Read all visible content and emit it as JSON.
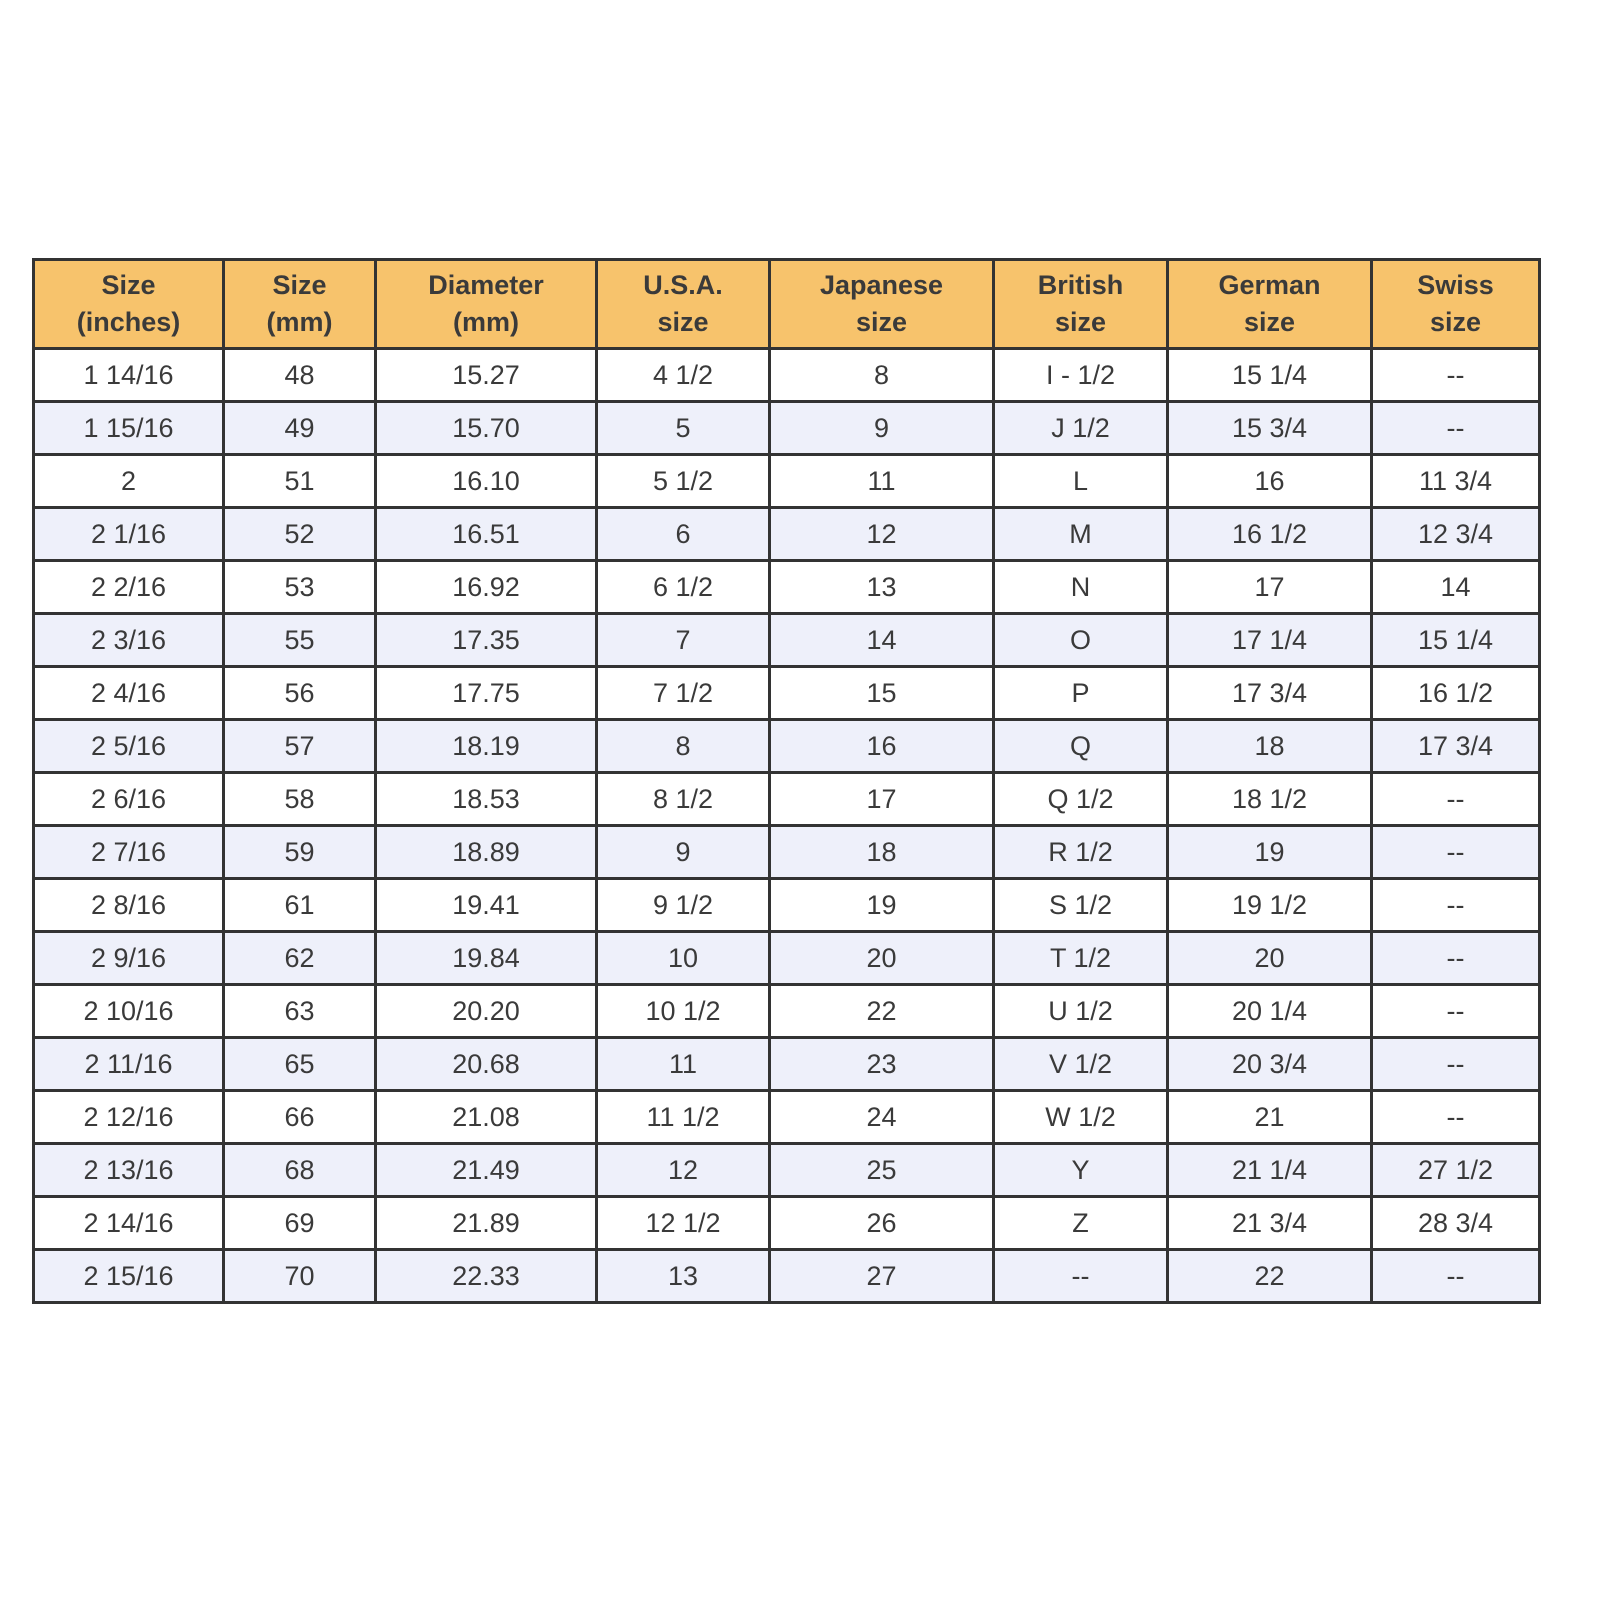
{
  "table": {
    "headers": [
      "Size\n(inches)",
      "Size\n(mm)",
      "Diameter\n(mm)",
      "U.S.A.\nsize",
      "Japanese\nsize",
      "British\nsize",
      "German\nsize",
      "Swiss\nsize"
    ],
    "rows": [
      [
        "1 14/16",
        "48",
        "15.27",
        "4 1/2",
        "8",
        "I - 1/2",
        "15 1/4",
        "--"
      ],
      [
        "1 15/16",
        "49",
        "15.70",
        "5",
        "9",
        "J 1/2",
        "15 3/4",
        "--"
      ],
      [
        "2",
        "51",
        "16.10",
        "5 1/2",
        "11",
        "L",
        "16",
        "11 3/4"
      ],
      [
        "2 1/16",
        "52",
        "16.51",
        "6",
        "12",
        "M",
        "16 1/2",
        "12 3/4"
      ],
      [
        "2 2/16",
        "53",
        "16.92",
        "6 1/2",
        "13",
        "N",
        "17",
        "14"
      ],
      [
        "2 3/16",
        "55",
        "17.35",
        "7",
        "14",
        "O",
        "17 1/4",
        "15 1/4"
      ],
      [
        "2 4/16",
        "56",
        "17.75",
        "7 1/2",
        "15",
        "P",
        "17 3/4",
        "16 1/2"
      ],
      [
        "2 5/16",
        "57",
        "18.19",
        "8",
        "16",
        "Q",
        "18",
        "17 3/4"
      ],
      [
        "2 6/16",
        "58",
        "18.53",
        "8 1/2",
        "17",
        "Q 1/2",
        "18 1/2",
        "--"
      ],
      [
        "2 7/16",
        "59",
        "18.89",
        "9",
        "18",
        "R 1/2",
        "19",
        "--"
      ],
      [
        "2 8/16",
        "61",
        "19.41",
        "9 1/2",
        "19",
        "S 1/2",
        "19 1/2",
        "--"
      ],
      [
        "2 9/16",
        "62",
        "19.84",
        "10",
        "20",
        "T 1/2",
        "20",
        "--"
      ],
      [
        "2 10/16",
        "63",
        "20.20",
        "10 1/2",
        "22",
        "U 1/2",
        "20 1/4",
        "--"
      ],
      [
        "2 11/16",
        "65",
        "20.68",
        "11",
        "23",
        "V 1/2",
        "20 3/4",
        "--"
      ],
      [
        "2 12/16",
        "66",
        "21.08",
        "11 1/2",
        "24",
        "W 1/2",
        "21",
        "--"
      ],
      [
        "2 13/16",
        "68",
        "21.49",
        "12",
        "25",
        "Y",
        "21 1/4",
        "27 1/2"
      ],
      [
        "2 14/16",
        "69",
        "21.89",
        "12 1/2",
        "26",
        "Z",
        "21 3/4",
        "28 3/4"
      ],
      [
        "2 15/16",
        "70",
        "22.33",
        "13",
        "27",
        "--",
        "22",
        "--"
      ]
    ]
  },
  "colors": {
    "header_bg": "#f7c36c",
    "alt_row_bg": "#eef0fa",
    "border": "#333333"
  }
}
